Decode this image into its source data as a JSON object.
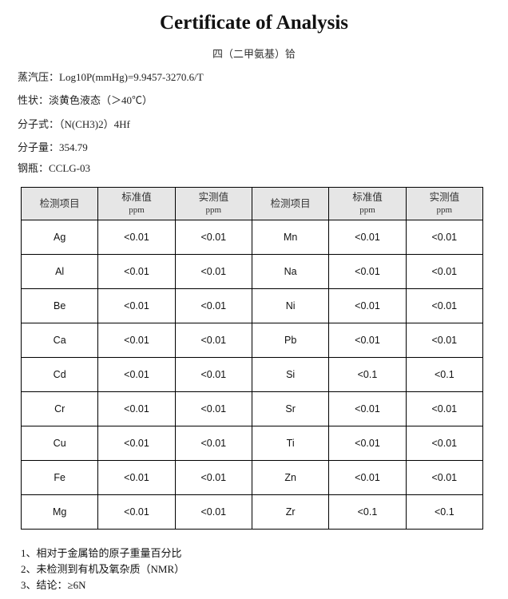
{
  "title": "Certificate of Analysis",
  "subtitle": "四（二甲氨基）铪",
  "properties": [
    "蒸汽压：Log10P(mmHg)=9.9457-3270.6/T",
    "性状：淡黄色液态（＞40℃）",
    "分子式：（N(CH3)2）4Hf",
    "分子量：354.79",
    "钢瓶：CCLG-03"
  ],
  "table": {
    "headers": [
      {
        "label": "检测项目",
        "unit": ""
      },
      {
        "label": "标准值",
        "unit": "ppm"
      },
      {
        "label": "实测值",
        "unit": "ppm"
      },
      {
        "label": "检测项目",
        "unit": ""
      },
      {
        "label": "标准值",
        "unit": "ppm"
      },
      {
        "label": "实测值",
        "unit": "ppm"
      }
    ],
    "rows": [
      [
        "Ag",
        "<0.01",
        "<0.01",
        "Mn",
        "<0.01",
        "<0.01"
      ],
      [
        "Al",
        "<0.01",
        "<0.01",
        "Na",
        "<0.01",
        "<0.01"
      ],
      [
        "Be",
        "<0.01",
        "<0.01",
        "Ni",
        "<0.01",
        "<0.01"
      ],
      [
        "Ca",
        "<0.01",
        "<0.01",
        "Pb",
        "<0.01",
        "<0.01"
      ],
      [
        "Cd",
        "<0.01",
        "<0.01",
        "Si",
        "<0.1",
        "<0.1"
      ],
      [
        "Cr",
        "<0.01",
        "<0.01",
        "Sr",
        "<0.01",
        "<0.01"
      ],
      [
        "Cu",
        "<0.01",
        "<0.01",
        "Ti",
        "<0.01",
        "<0.01"
      ],
      [
        "Fe",
        "<0.01",
        "<0.01",
        "Zn",
        "<0.01",
        "<0.01"
      ],
      [
        "Mg",
        "<0.01",
        "<0.01",
        "Zr",
        "<0.1",
        "<0.1"
      ]
    ]
  },
  "notes": [
    "1、相对于金属铪的原子重量百分比",
    "2、未检测到有机及氧杂质（NMR）",
    "3、结论：≥6N"
  ]
}
